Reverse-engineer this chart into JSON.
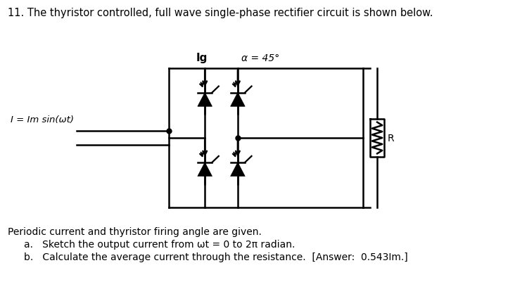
{
  "title_text": "11. The thyristor controlled, full wave single-phase rectifier circuit is shown below.",
  "footer_line1": "Periodic current and thyristor firing angle are given.",
  "footer_line2a": "a.   Sketch the output current from ωt = 0 to 2π radian.",
  "footer_line2b": "b.   Calculate the average current through the resistance.  [Answer:  0.543Im.]",
  "label_Ig": "Ig",
  "label_alpha": "α = 45°",
  "label_I": "I = Im sin(ωt)",
  "label_R": "R",
  "bg_color": "#ffffff",
  "text_color": "#000000",
  "circuit_color": "#000000",
  "circuit_lw": 1.8,
  "title_fontsize": 10.5,
  "label_fontsize": 10,
  "footer_fontsize": 10
}
